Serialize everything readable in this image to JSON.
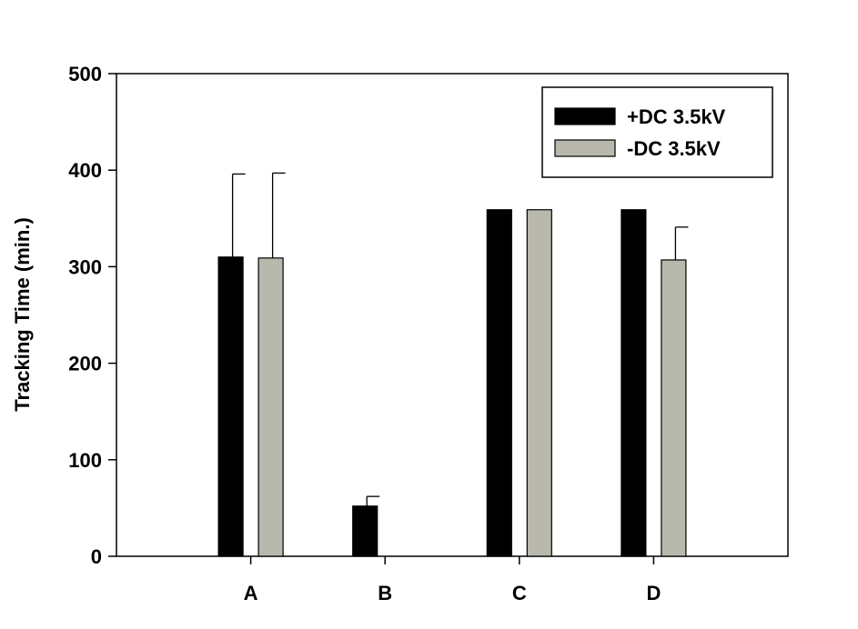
{
  "chart_data": {
    "type": "bar",
    "title": "",
    "xlabel": "",
    "ylabel": "Tracking Time (min.)",
    "ylim": [
      0,
      500
    ],
    "yticks": [
      0,
      100,
      200,
      300,
      400,
      500
    ],
    "categories": [
      "A",
      "B",
      "C",
      "D"
    ],
    "grid": false,
    "legend_position": "top-right",
    "series": [
      {
        "name": "+DC 3.5kV",
        "color": "#000000",
        "values": [
          310,
          52,
          359,
          359
        ],
        "errors": [
          86,
          10,
          0,
          0
        ]
      },
      {
        "name": "-DC 3.5kV",
        "color": "#b8b8ac",
        "values": [
          309,
          0,
          359,
          307
        ],
        "errors": [
          88,
          0,
          0,
          34
        ]
      }
    ]
  }
}
